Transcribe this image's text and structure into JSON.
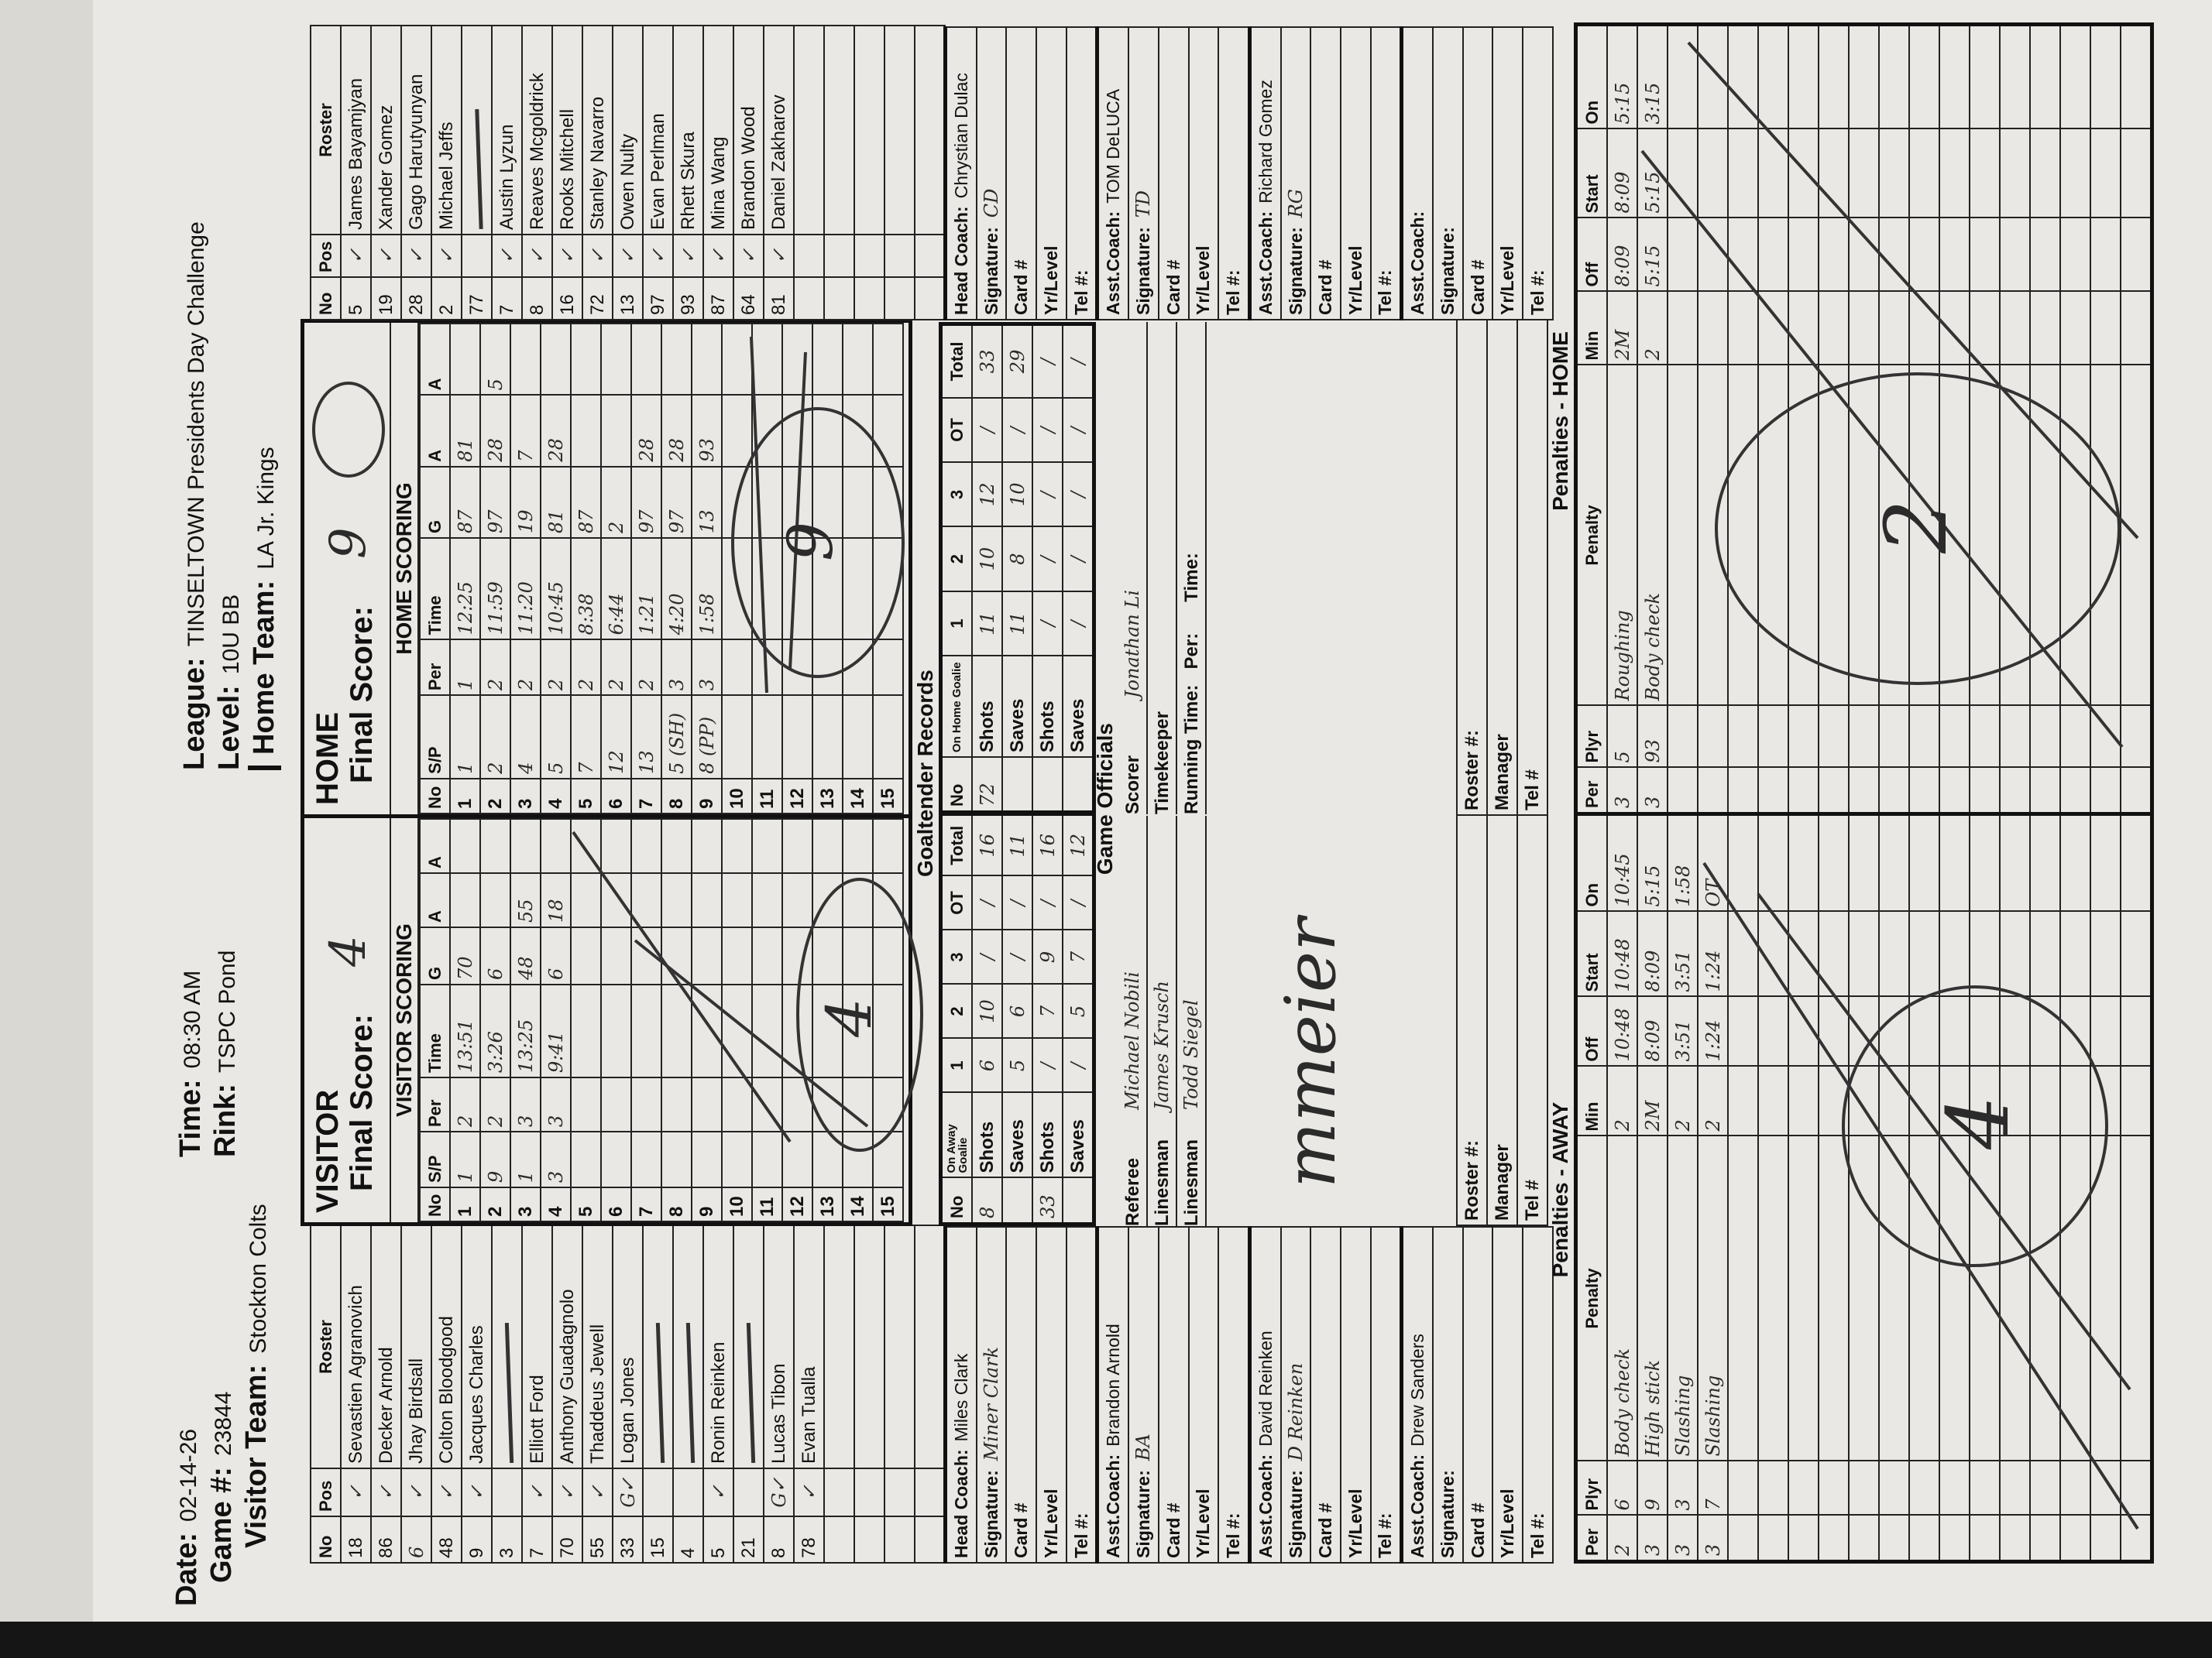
{
  "header": {
    "date_label": "Date:",
    "date": "02-14-26",
    "game_label": "Game #:",
    "game": "23844",
    "visitor_team_label": "Visitor Team:",
    "visitor_team": "Stockton Colts",
    "time_label": "Time:",
    "time": "08:30 AM",
    "rink_label": "Rink:",
    "rink": "TSPC Pond",
    "league_label": "League:",
    "league": "TINSELTOWN Presidents Day Challenge",
    "level_label": "Level:",
    "level": "10U BB",
    "home_team_label": "Home Team:",
    "home_team": "LA Jr. Kings"
  },
  "labels": {
    "roster_cols": [
      "No",
      "Pos",
      "Roster"
    ],
    "scoring_cols": [
      "No",
      "S/P",
      "Per",
      "Time",
      "G",
      "A",
      "A"
    ],
    "final_score": "Final Score:",
    "goaltender_records": "Goaltender Records",
    "goalie_cols": [
      "No",
      "1",
      "2",
      "3",
      "OT",
      "Total"
    ],
    "on_away_goalie": "On Away Goalie",
    "on_home_goalie": "On Home Goalie",
    "shots": "Shots",
    "saves": "Saves",
    "game_officials": "Game Officials",
    "roster_no": "Roster #:",
    "manager": "Manager",
    "tel": "Tel #",
    "penalty_cols": [
      "Per",
      "Plyr",
      "Penalty",
      "Min",
      "Off",
      "Start",
      "On"
    ],
    "coach_fields": [
      "Signature:",
      "Card #",
      "Yr/Level",
      "Tel #:"
    ]
  },
  "visitor": {
    "title": "VISITOR",
    "final_score": "4",
    "scoring_title": "VISITOR SCORING",
    "roster": [
      {
        "no": "18",
        "pos": "✓",
        "name": "Sevastien Agranovich"
      },
      {
        "no": "86",
        "pos": "✓",
        "name": "Decker Arnold"
      },
      {
        "no": "6",
        "pos": "✓",
        "name": "Jhay Birdsall",
        "handwritten_no": true
      },
      {
        "no": "48",
        "pos": "✓",
        "name": "Colton Bloodgood"
      },
      {
        "no": "9",
        "pos": "✓",
        "name": "Jacques Charles"
      },
      {
        "no": "3",
        "pos": "",
        "name": "",
        "struck": true
      },
      {
        "no": "7",
        "pos": "✓",
        "name": "Elliott Ford"
      },
      {
        "no": "70",
        "pos": "✓",
        "name": "Anthony Guadagnolo"
      },
      {
        "no": "55",
        "pos": "✓",
        "name": "Thaddeus Jewell"
      },
      {
        "no": "33",
        "pos": "G✓",
        "name": "Logan Jones"
      },
      {
        "no": "15",
        "pos": "",
        "name": "",
        "struck": true
      },
      {
        "no": "4",
        "pos": "",
        "name": "",
        "struck": true
      },
      {
        "no": "5",
        "pos": "✓",
        "name": "Ronin Reinken"
      },
      {
        "no": "21",
        "pos": "",
        "name": "",
        "struck": true
      },
      {
        "no": "8",
        "pos": "G✓",
        "name": "Lucas Tibon"
      },
      {
        "no": "78",
        "pos": "✓",
        "name": "Evan Tualla"
      }
    ],
    "scoring": [
      {
        "sp": "1",
        "per": "2",
        "time": "13:51",
        "g": "70",
        "a1": "",
        "a2": ""
      },
      {
        "sp": "9",
        "per": "2",
        "time": "3:26",
        "g": "6",
        "a1": "",
        "a2": ""
      },
      {
        "sp": "1",
        "per": "3",
        "time": "13:25",
        "g": "48",
        "a1": "55",
        "a2": ""
      },
      {
        "sp": "3",
        "per": "3",
        "time": "9:41",
        "g": "6",
        "a1": "18",
        "a2": ""
      }
    ],
    "goalies": [
      {
        "no": "8",
        "shots": [
          "6",
          "10",
          "/",
          "/",
          "16"
        ],
        "saves": [
          "5",
          "6",
          "/",
          "/",
          "11"
        ]
      },
      {
        "no": "33",
        "shots": [
          "/",
          "7",
          "9",
          "/",
          "16"
        ],
        "saves": [
          "/",
          "5",
          "7",
          "/",
          "12"
        ]
      }
    ],
    "officials": [
      {
        "label": "Referee",
        "value": "Michael Nobili"
      },
      {
        "label": "Linesman",
        "value": "James Krusch"
      },
      {
        "label": "Linesman",
        "value": "Todd Siegel"
      }
    ],
    "coaches": [
      {
        "role": "Head Coach:",
        "name": "Miles Clark",
        "signature": "Miner Clark"
      },
      {
        "role": "Asst.Coach:",
        "name": "Brandon Arnold",
        "signature": "BA"
      },
      {
        "role": "Asst.Coach:",
        "name": "David Reinken",
        "signature": "D Reinken"
      },
      {
        "role": "Asst.Coach:",
        "name": "Drew Sanders",
        "signature": ""
      }
    ],
    "official_signature": "mmeier",
    "penalties_title": "Penalties - AWAY",
    "penalties": [
      {
        "per": "2",
        "plyr": "6",
        "penalty": "Body check",
        "min": "2",
        "off": "10:48",
        "start": "10:48",
        "on": "10:45"
      },
      {
        "per": "3",
        "plyr": "9",
        "penalty": "High stick",
        "min": "2M",
        "off": "8:09",
        "start": "8:09",
        "on": "5:15"
      },
      {
        "per": "3",
        "plyr": "3",
        "penalty": "Slashing",
        "min": "2",
        "off": "3:51",
        "start": "3:51",
        "on": "1:58"
      },
      {
        "per": "3",
        "plyr": "7",
        "penalty": "Slashing",
        "min": "2",
        "off": "1:24",
        "start": "1:24",
        "on": "OT"
      }
    ],
    "penalty_tally": "4"
  },
  "home": {
    "title": "HOME",
    "final_score": "9",
    "scoring_title": "HOME SCORING",
    "roster": [
      {
        "no": "5",
        "pos": "✓",
        "name": "James Bayamjyan"
      },
      {
        "no": "19",
        "pos": "✓",
        "name": "Xander Gomez"
      },
      {
        "no": "28",
        "pos": "✓",
        "name": "Gago Harutyunyan"
      },
      {
        "no": "2",
        "pos": "✓",
        "name": "Michael Jeffs"
      },
      {
        "no": "77",
        "pos": "",
        "name": "",
        "struck": true
      },
      {
        "no": "7",
        "pos": "✓",
        "name": "Austin Lyzun"
      },
      {
        "no": "8",
        "pos": "✓",
        "name": "Reaves Mcgoldrick"
      },
      {
        "no": "16",
        "pos": "✓",
        "name": "Rooks Mitchell"
      },
      {
        "no": "72",
        "pos": "✓",
        "name": "Stanley Navarro"
      },
      {
        "no": "13",
        "pos": "✓",
        "name": "Owen Nulty"
      },
      {
        "no": "97",
        "pos": "✓",
        "name": "Evan Perlman"
      },
      {
        "no": "93",
        "pos": "✓",
        "name": "Rhett Skura"
      },
      {
        "no": "87",
        "pos": "✓",
        "name": "Mina Wang"
      },
      {
        "no": "64",
        "pos": "✓",
        "name": "Brandon Wood"
      },
      {
        "no": "81",
        "pos": "✓",
        "name": "Daniel Zakharov"
      }
    ],
    "scoring": [
      {
        "sp": "1",
        "per": "1",
        "time": "12:25",
        "g": "87",
        "a1": "81",
        "a2": ""
      },
      {
        "sp": "2",
        "per": "2",
        "time": "11:59",
        "g": "97",
        "a1": "28",
        "a2": "5"
      },
      {
        "sp": "4",
        "per": "2",
        "time": "11:20",
        "g": "19",
        "a1": "7",
        "a2": ""
      },
      {
        "sp": "5",
        "per": "2",
        "time": "10:45",
        "g": "81",
        "a1": "28",
        "a2": ""
      },
      {
        "sp": "7",
        "per": "2",
        "time": "8:38",
        "g": "87",
        "a1": "",
        "a2": ""
      },
      {
        "sp": "12",
        "per": "2",
        "time": "6:44",
        "g": "2",
        "a1": "",
        "a2": ""
      },
      {
        "sp": "13",
        "per": "2",
        "time": "1:21",
        "g": "97",
        "a1": "28",
        "a2": ""
      },
      {
        "sp": "5 (SH)",
        "per": "3",
        "time": "4:20",
        "g": "97",
        "a1": "28",
        "a2": ""
      },
      {
        "sp": "8 (PP)",
        "per": "3",
        "time": "1:58",
        "g": "13",
        "a1": "93",
        "a2": ""
      }
    ],
    "goalies": [
      {
        "no": "72",
        "shots": [
          "11",
          "10",
          "12",
          "/",
          "33"
        ],
        "saves": [
          "11",
          "8",
          "10",
          "/",
          "29"
        ]
      },
      {
        "no": "",
        "shots": [
          "/",
          "/",
          "/",
          "/",
          "/"
        ],
        "saves": [
          "/",
          "/",
          "/",
          "/",
          "/"
        ]
      }
    ],
    "officials": [
      {
        "label": "Scorer",
        "value": "Jonathan Li"
      },
      {
        "label": "Timekeeper",
        "value": ""
      },
      {
        "label": "Running Time:   Per:      Time:",
        "value": ""
      }
    ],
    "coaches": [
      {
        "role": "Head Coach:",
        "name": "Chrystian Dulac",
        "signature": "CD"
      },
      {
        "role": "Asst.Coach:",
        "name": "TOM DeLUCA",
        "signature": "TD"
      },
      {
        "role": "Asst.Coach:",
        "name": "Richard Gomez",
        "signature": "RG"
      },
      {
        "role": "Asst.Coach:",
        "name": "",
        "signature": ""
      }
    ],
    "penalties_title": "Penalties - HOME",
    "penalties": [
      {
        "per": "3",
        "plyr": "5",
        "penalty": "Roughing",
        "min": "2M",
        "off": "8:09",
        "start": "8:09",
        "on": "5:15"
      },
      {
        "per": "3",
        "plyr": "93",
        "penalty": "Body check",
        "min": "2",
        "off": "5:15",
        "start": "5:15",
        "on": "3:15"
      }
    ],
    "penalty_tally": "2"
  },
  "colors": {
    "paper": "#e9e8e4",
    "ink": "#2b2b2b",
    "print": "#111111"
  }
}
